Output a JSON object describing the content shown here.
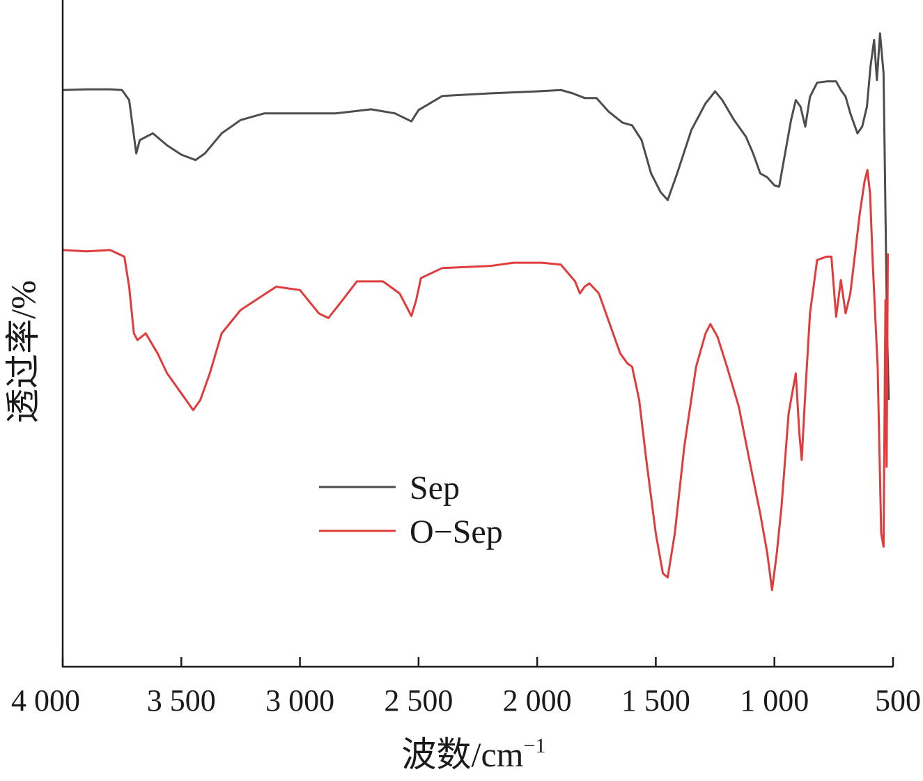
{
  "chart_data": {
    "type": "line",
    "title": "",
    "xlabel": "波数/cm",
    "xlabel_superscript": "−1",
    "ylabel": "透过率/%",
    "xlim": [
      4000,
      500
    ],
    "x_reversed": true,
    "ylim": [
      0,
      100
    ],
    "yticks_shown": false,
    "grid": false,
    "legend_position": "center-left",
    "xticks": [
      4000,
      3500,
      3000,
      2500,
      2000,
      1500,
      1000,
      500
    ],
    "xtick_labels": [
      "4 000",
      "3 500",
      "3 000",
      "2 500",
      "2 000",
      "1 500",
      "1 000",
      "500"
    ],
    "series": [
      {
        "name": "Sep",
        "color": "#4d4d4d",
        "points": [
          [
            4000,
            86.5
          ],
          [
            3900,
            86.6
          ],
          [
            3800,
            86.6
          ],
          [
            3750,
            86.5
          ],
          [
            3720,
            85.0
          ],
          [
            3690,
            77.0
          ],
          [
            3675,
            79.0
          ],
          [
            3620,
            80.0
          ],
          [
            3560,
            78.2
          ],
          [
            3500,
            76.8
          ],
          [
            3440,
            76.0
          ],
          [
            3400,
            77.0
          ],
          [
            3330,
            80.0
          ],
          [
            3250,
            82.0
          ],
          [
            3150,
            83.0
          ],
          [
            3000,
            83.0
          ],
          [
            2850,
            83.0
          ],
          [
            2700,
            83.6
          ],
          [
            2600,
            83.0
          ],
          [
            2530,
            81.8
          ],
          [
            2500,
            83.5
          ],
          [
            2400,
            85.6
          ],
          [
            2200,
            86.0
          ],
          [
            2000,
            86.3
          ],
          [
            1900,
            86.5
          ],
          [
            1850,
            86.0
          ],
          [
            1800,
            85.3
          ],
          [
            1750,
            85.3
          ],
          [
            1700,
            83.3
          ],
          [
            1640,
            81.6
          ],
          [
            1600,
            81.2
          ],
          [
            1560,
            79.0
          ],
          [
            1520,
            74.0
          ],
          [
            1480,
            71.2
          ],
          [
            1450,
            70.0
          ],
          [
            1410,
            74.0
          ],
          [
            1350,
            80.5
          ],
          [
            1290,
            84.5
          ],
          [
            1250,
            86.3
          ],
          [
            1220,
            85.0
          ],
          [
            1170,
            82.0
          ],
          [
            1120,
            79.5
          ],
          [
            1090,
            77.0
          ],
          [
            1060,
            74.0
          ],
          [
            1030,
            73.4
          ],
          [
            1000,
            72.2
          ],
          [
            980,
            72.0
          ],
          [
            960,
            76.0
          ],
          [
            930,
            82.0
          ],
          [
            910,
            85.0
          ],
          [
            890,
            84.0
          ],
          [
            870,
            81.0
          ],
          [
            850,
            85.5
          ],
          [
            820,
            87.6
          ],
          [
            780,
            87.8
          ],
          [
            740,
            87.8
          ],
          [
            720,
            86.5
          ],
          [
            700,
            85.5
          ],
          [
            680,
            83.0
          ],
          [
            650,
            80.0
          ],
          [
            630,
            81.0
          ],
          [
            610,
            84.0
          ],
          [
            595,
            90.0
          ],
          [
            580,
            94.0
          ],
          [
            568,
            88.0
          ],
          [
            555,
            95.0
          ],
          [
            540,
            89.0
          ],
          [
            525,
            50.0
          ],
          [
            518,
            40.0
          ]
        ]
      },
      {
        "name": "O−Sep",
        "color": "#e03c3c",
        "points": [
          [
            4000,
            62.5
          ],
          [
            3900,
            62.3
          ],
          [
            3800,
            62.5
          ],
          [
            3740,
            61.5
          ],
          [
            3720,
            57.0
          ],
          [
            3700,
            50.0
          ],
          [
            3685,
            49.0
          ],
          [
            3650,
            50.0
          ],
          [
            3600,
            47.0
          ],
          [
            3560,
            44.0
          ],
          [
            3500,
            41.0
          ],
          [
            3450,
            38.5
          ],
          [
            3420,
            40.0
          ],
          [
            3380,
            44.0
          ],
          [
            3330,
            50.0
          ],
          [
            3250,
            53.5
          ],
          [
            3100,
            57.0
          ],
          [
            3000,
            56.5
          ],
          [
            2920,
            53.0
          ],
          [
            2880,
            52.3
          ],
          [
            2820,
            55.0
          ],
          [
            2760,
            57.8
          ],
          [
            2650,
            57.8
          ],
          [
            2580,
            56.0
          ],
          [
            2530,
            52.6
          ],
          [
            2510,
            55.0
          ],
          [
            2490,
            58.3
          ],
          [
            2400,
            59.8
          ],
          [
            2200,
            60.1
          ],
          [
            2100,
            60.6
          ],
          [
            1980,
            60.6
          ],
          [
            1900,
            60.3
          ],
          [
            1840,
            57.8
          ],
          [
            1820,
            56.0
          ],
          [
            1800,
            57.0
          ],
          [
            1780,
            57.5
          ],
          [
            1740,
            56.0
          ],
          [
            1700,
            52.0
          ],
          [
            1650,
            47.0
          ],
          [
            1620,
            45.5
          ],
          [
            1600,
            45.0
          ],
          [
            1570,
            40.0
          ],
          [
            1540,
            31.0
          ],
          [
            1500,
            20.0
          ],
          [
            1470,
            14.0
          ],
          [
            1450,
            13.4
          ],
          [
            1420,
            20.0
          ],
          [
            1380,
            33.0
          ],
          [
            1330,
            45.0
          ],
          [
            1290,
            50.0
          ],
          [
            1270,
            51.4
          ],
          [
            1240,
            49.5
          ],
          [
            1200,
            45.0
          ],
          [
            1150,
            39.0
          ],
          [
            1100,
            30.0
          ],
          [
            1060,
            23.0
          ],
          [
            1030,
            17.0
          ],
          [
            1010,
            11.5
          ],
          [
            990,
            17.0
          ],
          [
            970,
            24.0
          ],
          [
            940,
            38.0
          ],
          [
            910,
            44.0
          ],
          [
            895,
            35.0
          ],
          [
            885,
            31.0
          ],
          [
            870,
            41.0
          ],
          [
            850,
            53.0
          ],
          [
            820,
            61.0
          ],
          [
            780,
            61.5
          ],
          [
            760,
            61.5
          ],
          [
            740,
            52.5
          ],
          [
            720,
            58.0
          ],
          [
            700,
            53.0
          ],
          [
            680,
            56.0
          ],
          [
            660,
            62.0
          ],
          [
            640,
            68.0
          ],
          [
            620,
            72.8
          ],
          [
            608,
            74.5
          ],
          [
            597,
            71.0
          ],
          [
            585,
            60.0
          ],
          [
            565,
            45.0
          ],
          [
            550,
            20.0
          ],
          [
            540,
            18.0
          ],
          [
            532,
            55.0
          ],
          [
            527,
            30.0
          ],
          [
            522,
            62.0
          ]
        ]
      }
    ]
  }
}
